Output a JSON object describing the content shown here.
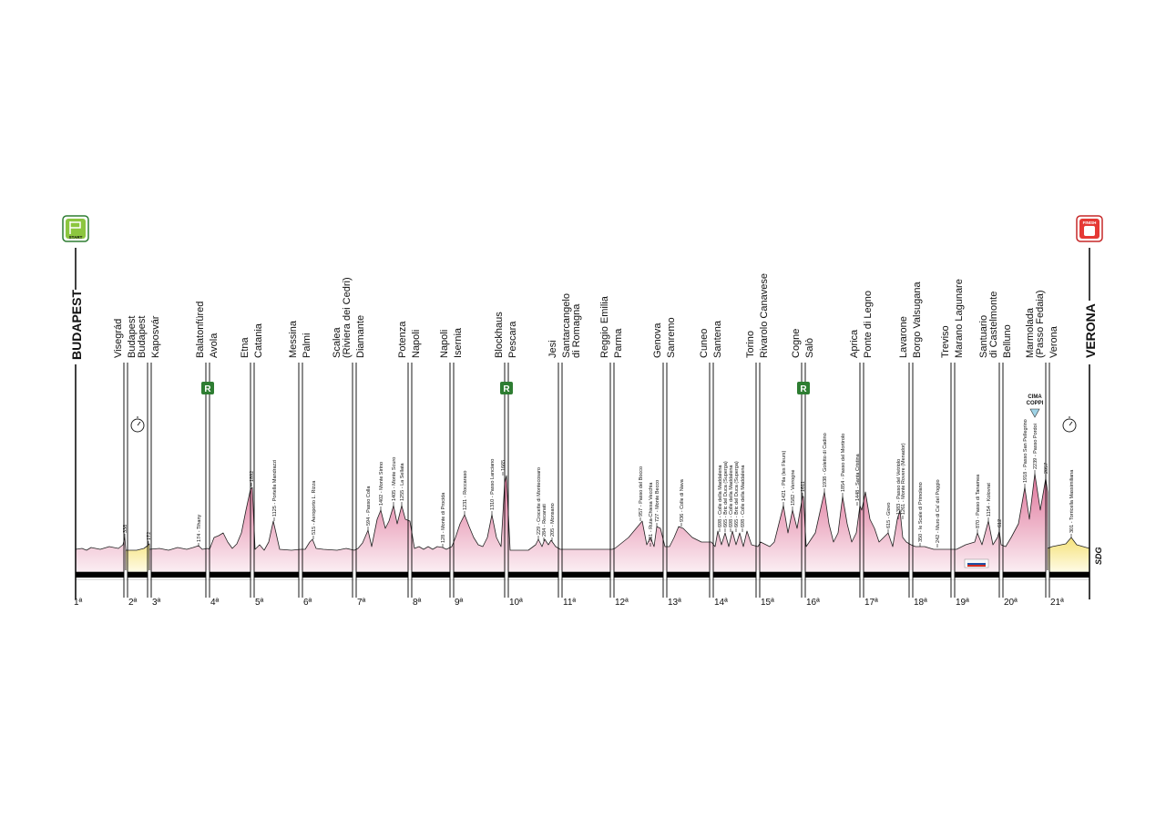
{
  "start": {
    "badge": "START",
    "town": "BUDAPEST"
  },
  "finish": {
    "badge": "FINISH",
    "town": "VERONA"
  },
  "transitions": [
    {
      "finish": [
        "Visegrád"
      ],
      "start": [
        "Budapest"
      ]
    },
    {
      "finish": [
        "Budapest"
      ],
      "start": [
        "Kaposvár"
      ]
    },
    {
      "finish": [
        "Balatonfüred"
      ],
      "start": [
        "Avola"
      ]
    },
    {
      "finish": [
        "Etna"
      ],
      "start": [
        "Catania"
      ]
    },
    {
      "finish": [
        "Messina"
      ],
      "start": [
        "Palmi"
      ]
    },
    {
      "finish": [
        "Scalea",
        "(Riviera dei Cedri)"
      ],
      "start": [
        "Diamante"
      ]
    },
    {
      "finish": [
        "Potenza"
      ],
      "start": [
        "Napoli"
      ]
    },
    {
      "finish": [
        "Napoli"
      ],
      "start": [
        "Isernia"
      ]
    },
    {
      "finish": [
        "Blockhaus"
      ],
      "start": [
        "Pescara"
      ]
    },
    {
      "finish": [
        "Jesi"
      ],
      "start": [
        "Santarcangelo",
        "di Romagna"
      ]
    },
    {
      "finish": [
        "Reggio Emilia"
      ],
      "start": [
        "Parma"
      ]
    },
    {
      "finish": [
        "Genova"
      ],
      "start": [
        "Sanremo"
      ]
    },
    {
      "finish": [
        "Cuneo"
      ],
      "start": [
        "Santena"
      ]
    },
    {
      "finish": [
        "Torino"
      ],
      "start": [
        "Rivarolo Canavese"
      ]
    },
    {
      "finish": [
        "Cogne"
      ],
      "start": [
        "Salò"
      ]
    },
    {
      "finish": [
        "Aprica"
      ],
      "start": [
        "Ponte di Legno"
      ]
    },
    {
      "finish": [
        "Lavarone"
      ],
      "start": [
        "Borgo Valsugana"
      ]
    },
    {
      "finish": [
        "Treviso"
      ],
      "start": [
        "Marano Lagunare"
      ]
    },
    {
      "finish": [
        "Santuario",
        "di Castelmonte"
      ],
      "start": [
        "Belluno"
      ]
    },
    {
      "finish": [
        "Marmolada",
        "(Passo Fedaia)"
      ],
      "start": [
        "Verona"
      ]
    }
  ],
  "stage_numbers": [
    "1ª",
    "2ª",
    "3ª",
    "4ª",
    "5ª",
    "6ª",
    "7ª",
    "8ª",
    "9ª",
    "10ª",
    "11ª",
    "12ª",
    "13ª",
    "14ª",
    "15ª",
    "16ª",
    "17ª",
    "18ª",
    "19ª",
    "20ª",
    "21ª"
  ],
  "rest_day_badge": "R",
  "cima_coppi": [
    "CIMA",
    "COPPI"
  ],
  "climbs": [
    "338",
    "172",
    "174 - Tihany",
    "1892",
    "1125 - Portella Mandrazzi",
    "515 - Aeroporto L. Rizza",
    "594 - Passo Colla",
    "1402 - Monte Sirino",
    "1405 - Monte Scuro",
    "1255 - La Sellata",
    "128 - Monte di Procida",
    "1231 - Roccaraso",
    "1310 - Passo Lanciano",
    "1665",
    "229 - Crocette di Montecosaro",
    "284 - Recanati",
    "205 - Monsano",
    "957 - Passo del Bocco",
    "281 - Ruta-Chiesa Vecchia",
    "727 - Monte Becco",
    "936 - Colle di Nava",
    "698 - Colle della Maddalena",
    "665 - Bric del Duca (Superga)",
    "698 - Colle della Maddalena",
    "665 - Bric del Duca (Superga)",
    "698 - Colle della Maddalena",
    "1421 - Pila (les Fleurs)",
    "1582 - Verrogne",
    "1611",
    "1938 - Goletto di Cadino",
    "1854 - Passo del Mortirolo",
    "1448 - Santa Cristina",
    "615 - Giovo",
    "1383 - Passo del Vetriolo",
    "1261 - Monte Rovere (Menador)",
    "350 - le Scale di Primolano",
    "242 - Muro di Ca' del Poggio",
    "870 - Passo di Tanamea",
    "1154 - Kolovrat",
    "612",
    "1918 - Passo San Pellegrino",
    "2239 - Passo Pordoi",
    "2057",
    "301 - Torricella Massimiliana"
  ],
  "logo": "SDG"
}
